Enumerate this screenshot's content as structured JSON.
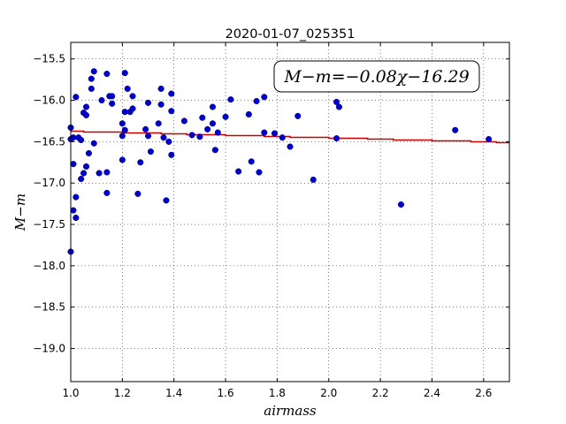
{
  "chart_data": {
    "type": "scatter",
    "title": "2020-01-07_025351",
    "xlabel": "airmass",
    "ylabel": "M−m",
    "xlim": [
      1.0,
      2.7
    ],
    "ylim": [
      -19.4,
      -15.3
    ],
    "y_inverted": true,
    "x_ticks": [
      1.0,
      1.2,
      1.4,
      1.6,
      1.8,
      2.0,
      2.2,
      2.4,
      2.6
    ],
    "x_tick_labels": [
      "1.0",
      "1.2",
      "1.4",
      "1.6",
      "1.8",
      "2.0",
      "2.2",
      "2.4",
      "2.6"
    ],
    "y_ticks": [
      -15.5,
      -16.0,
      -16.5,
      -17.0,
      -17.5,
      -18.0,
      -18.5,
      -19.0
    ],
    "y_tick_labels": [
      "−15.5",
      "−16.0",
      "−16.5",
      "−17.0",
      "−17.5",
      "−18.0",
      "−18.5",
      "−19.0"
    ],
    "grid": true,
    "annotation": "M−m=−0.08χ−16.29",
    "point_color": "#0000cc",
    "fit_color": "#cc0000",
    "fit": {
      "slope": -0.08,
      "intercept": -16.29
    },
    "points": [
      [
        1.0,
        -16.33
      ],
      [
        1.0,
        -16.47
      ],
      [
        1.0,
        -17.83
      ],
      [
        1.01,
        -16.45
      ],
      [
        1.01,
        -16.77
      ],
      [
        1.01,
        -17.33
      ],
      [
        1.02,
        -15.96
      ],
      [
        1.02,
        -17.17
      ],
      [
        1.02,
        -17.42
      ],
      [
        1.03,
        -16.45
      ],
      [
        1.04,
        -16.48
      ],
      [
        1.04,
        -16.95
      ],
      [
        1.05,
        -16.15
      ],
      [
        1.05,
        -16.88
      ],
      [
        1.06,
        -16.8
      ],
      [
        1.06,
        -16.18
      ],
      [
        1.06,
        -16.08
      ],
      [
        1.07,
        -16.64
      ],
      [
        1.08,
        -15.86
      ],
      [
        1.08,
        -15.74
      ],
      [
        1.09,
        -15.65
      ],
      [
        1.09,
        -16.52
      ],
      [
        1.11,
        -16.88
      ],
      [
        1.12,
        -16.0
      ],
      [
        1.14,
        -17.12
      ],
      [
        1.14,
        -16.87
      ],
      [
        1.14,
        -15.68
      ],
      [
        1.15,
        -15.95
      ],
      [
        1.16,
        -16.04
      ],
      [
        1.16,
        -15.95
      ],
      [
        1.2,
        -16.72
      ],
      [
        1.2,
        -16.43
      ],
      [
        1.2,
        -16.28
      ],
      [
        1.21,
        -16.14
      ],
      [
        1.21,
        -15.67
      ],
      [
        1.21,
        -16.36
      ],
      [
        1.22,
        -15.86
      ],
      [
        1.23,
        -16.14
      ],
      [
        1.24,
        -16.1
      ],
      [
        1.24,
        -15.95
      ],
      [
        1.26,
        -17.13
      ],
      [
        1.27,
        -16.75
      ],
      [
        1.29,
        -16.35
      ],
      [
        1.3,
        -16.03
      ],
      [
        1.3,
        -16.43
      ],
      [
        1.31,
        -16.62
      ],
      [
        1.34,
        -16.28
      ],
      [
        1.35,
        -16.05
      ],
      [
        1.35,
        -15.86
      ],
      [
        1.36,
        -16.45
      ],
      [
        1.37,
        -17.21
      ],
      [
        1.38,
        -16.5
      ],
      [
        1.39,
        -15.92
      ],
      [
        1.39,
        -16.13
      ],
      [
        1.39,
        -16.66
      ],
      [
        1.44,
        -16.25
      ],
      [
        1.47,
        -16.42
      ],
      [
        1.5,
        -16.44
      ],
      [
        1.51,
        -16.21
      ],
      [
        1.53,
        -16.35
      ],
      [
        1.55,
        -16.08
      ],
      [
        1.55,
        -16.28
      ],
      [
        1.56,
        -16.6
      ],
      [
        1.57,
        -16.39
      ],
      [
        1.6,
        -16.2
      ],
      [
        1.62,
        -15.99
      ],
      [
        1.65,
        -16.86
      ],
      [
        1.69,
        -16.17
      ],
      [
        1.7,
        -16.74
      ],
      [
        1.72,
        -16.01
      ],
      [
        1.73,
        -16.87
      ],
      [
        1.75,
        -16.39
      ],
      [
        1.75,
        -15.96
      ],
      [
        1.79,
        -16.4
      ],
      [
        1.82,
        -16.45
      ],
      [
        1.85,
        -16.56
      ],
      [
        1.88,
        -16.19
      ],
      [
        1.94,
        -16.96
      ],
      [
        2.03,
        -16.02
      ],
      [
        2.03,
        -16.46
      ],
      [
        2.04,
        -16.08
      ],
      [
        2.28,
        -17.26
      ],
      [
        2.49,
        -16.36
      ],
      [
        2.62,
        -16.47
      ]
    ]
  }
}
